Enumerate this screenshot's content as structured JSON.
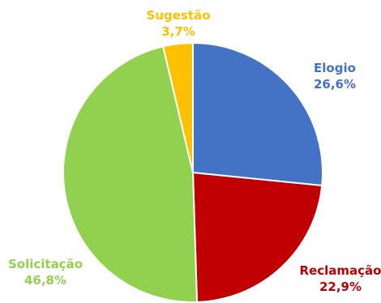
{
  "chart_data": {
    "type": "pie",
    "title": "",
    "start_angle_deg": 0,
    "direction": "clockwise",
    "slices": [
      {
        "label": "Elogio",
        "value": 26.6,
        "value_label": "26,6%",
        "color": "#4472C4"
      },
      {
        "label": "Reclamação",
        "value": 22.9,
        "value_label": "22,9%",
        "color": "#C00000"
      },
      {
        "label": "Solicitação",
        "value": 46.8,
        "value_label": "46,8%",
        "color": "#92D050"
      },
      {
        "label": "Sugestão",
        "value": 3.7,
        "value_label": "3,7%",
        "color": "#FFC000"
      }
    ],
    "legend": "none",
    "data_labels": "outside"
  }
}
